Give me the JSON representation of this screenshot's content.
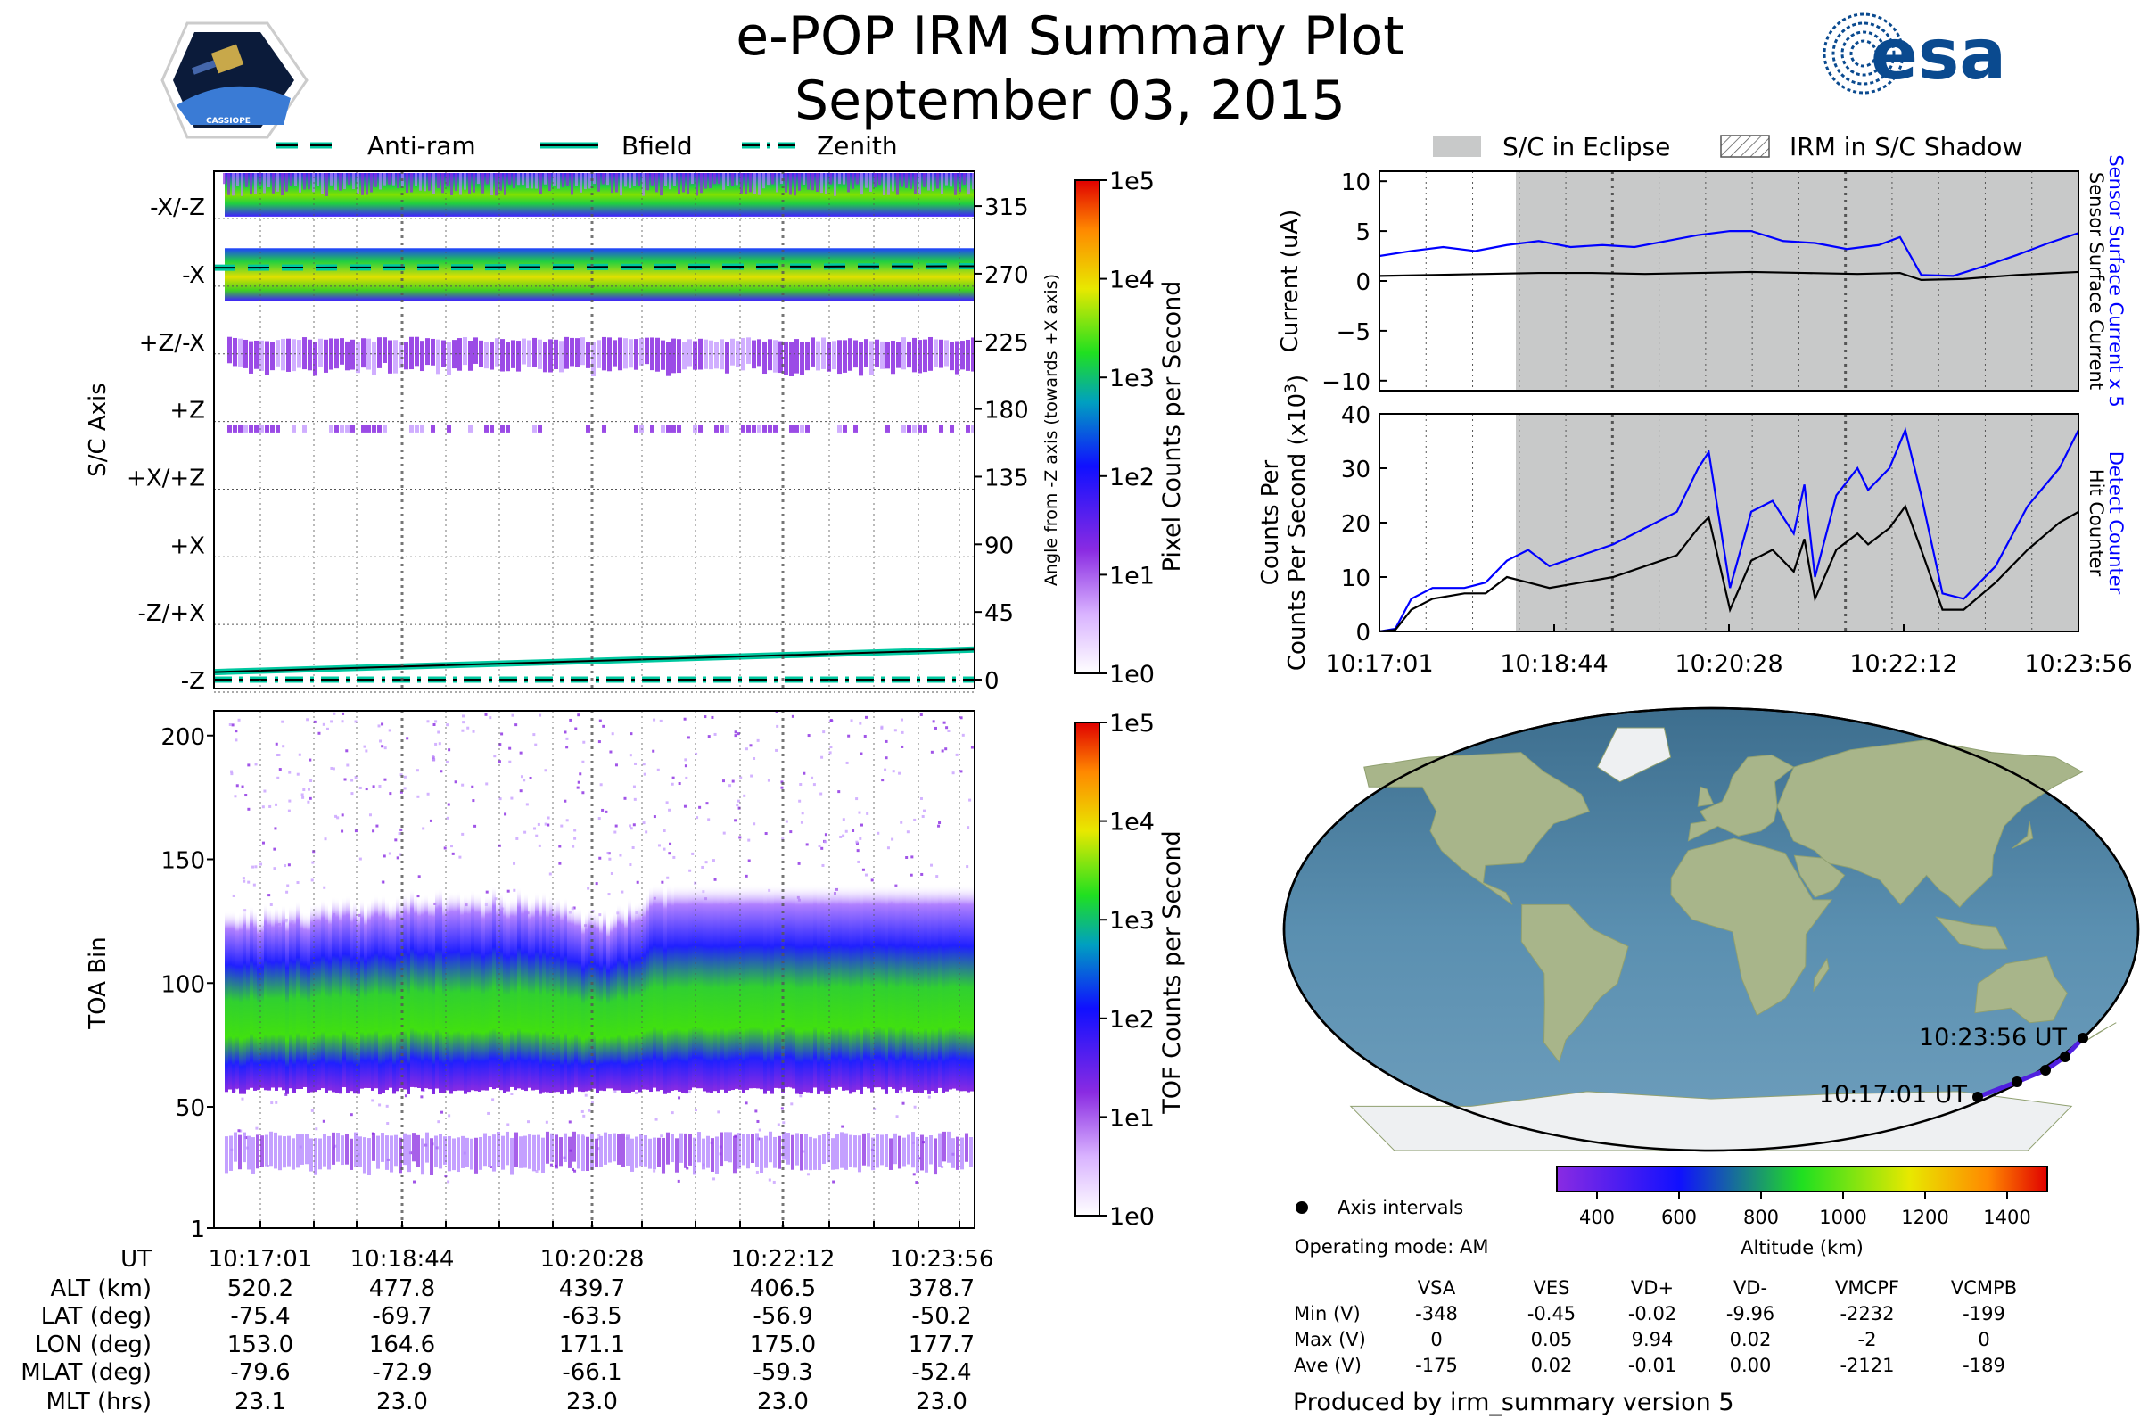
{
  "header": {
    "title": "e-POP IRM Summary Plot",
    "date": "September 03, 2015",
    "left_logo_text": "CASSIOPE",
    "right_logo_text": "esa"
  },
  "colors": {
    "eclipse": "#c8c9c9",
    "blue_trace": "#0000ff",
    "black_trace": "#000000",
    "teal": "#00c8a0"
  },
  "chart_data": [
    {
      "id": "angle_spectrogram",
      "type": "heatmap",
      "ylabel": "S/C Axis",
      "ylabel_right": "Angle from -Z axis (towards +X axis)",
      "y_axis_labels": [
        "-X/-Z",
        "-X",
        "+Z/-X",
        "+Z",
        "+X/+Z",
        "+X",
        "-Z/+X",
        "-Z"
      ],
      "y_right_ticks": [
        "315",
        "270",
        "225",
        "180",
        "135",
        "90",
        "45",
        "0"
      ],
      "y_range": [
        0,
        337
      ],
      "x_ticks": [
        "10:17:01",
        "10:18:44",
        "10:20:28",
        "10:22:12",
        "10:23:56"
      ],
      "legend": [
        "Anti-ram",
        "Bfield",
        "Zenith"
      ],
      "bands_deg": [
        {
          "from": 308,
          "to": 337,
          "level": "high"
        },
        {
          "from": 252,
          "to": 287,
          "level": "very-high"
        },
        {
          "from": 205,
          "to": 228,
          "level": "low"
        },
        {
          "from": 162,
          "to": 178,
          "level": "sparse"
        }
      ],
      "antiram_deg": [
        274,
        275
      ],
      "bfield_deg": [
        5,
        20
      ],
      "zenith_deg": [
        0,
        0
      ],
      "colorbar": {
        "label": "Pixel Counts per Second",
        "ticks": [
          "1e0",
          "1e1",
          "1e2",
          "1e3",
          "1e4",
          "1e5"
        ]
      }
    },
    {
      "id": "tof_spectrogram",
      "type": "heatmap",
      "ylabel": "TOA Bin",
      "y_ticks": [
        "1",
        "50",
        "100",
        "150",
        "200"
      ],
      "y_range": [
        1,
        210
      ],
      "x_ticks": [
        "10:17:01",
        "10:18:44",
        "10:20:28",
        "10:22:12",
        "10:23:56"
      ],
      "main_band_center": [
        75,
        76,
        77,
        78,
        78,
        76,
        65,
        78,
        80,
        80,
        78,
        82,
        80
      ],
      "lower_band_range": [
        25,
        40
      ],
      "colorbar": {
        "label": "TOF Counts per Second",
        "ticks": [
          "1e0",
          "1e1",
          "1e2",
          "1e3",
          "1e4",
          "1e5"
        ]
      }
    },
    {
      "id": "current_plot",
      "type": "line",
      "ylabel": "Current (uA)",
      "yticks": [
        "10",
        "5",
        "0",
        "−5",
        "−10"
      ],
      "ylim": [
        -11,
        11
      ],
      "right_labels": [
        "Sensor Surface Current x 5",
        "Sensor Surface Current"
      ],
      "eclipse_start_min": 1.5,
      "series": [
        {
          "name": "Sensor Surface Current x 5",
          "color": "blue",
          "x": [
            0,
            0.3,
            0.6,
            0.9,
            1.2,
            1.5,
            1.8,
            2.1,
            2.4,
            2.7,
            3.0,
            3.3,
            3.5,
            3.8,
            4.1,
            4.4,
            4.7,
            4.9,
            5.1,
            5.4,
            5.7,
            6.0,
            6.3,
            6.58
          ],
          "y": [
            2.5,
            3.0,
            3.4,
            3.0,
            3.6,
            4.0,
            3.4,
            3.6,
            3.4,
            4.0,
            4.6,
            5.0,
            5.0,
            4.0,
            3.8,
            3.2,
            3.6,
            4.4,
            0.6,
            0.5,
            1.5,
            2.6,
            3.8,
            4.8
          ]
        },
        {
          "name": "Sensor Surface Current",
          "color": "black",
          "x": [
            0,
            0.5,
            1.0,
            1.5,
            2.0,
            2.5,
            3.0,
            3.5,
            4.0,
            4.5,
            4.9,
            5.1,
            5.5,
            6.0,
            6.58
          ],
          "y": [
            0.5,
            0.6,
            0.7,
            0.8,
            0.8,
            0.7,
            0.8,
            0.9,
            0.8,
            0.7,
            0.8,
            0.1,
            0.2,
            0.6,
            0.9
          ]
        }
      ]
    },
    {
      "id": "counts_plot",
      "type": "line",
      "ylabel": "Counts Per Second (x10",
      "ylabel_sup": "3",
      "ylabel_close": ")",
      "yticks": [
        "40",
        "30",
        "20",
        "10",
        "0"
      ],
      "ylim": [
        0,
        40
      ],
      "x_ticks": [
        "10:17:01",
        "10:18:44",
        "10:20:28",
        "10:22:12",
        "10:23:56"
      ],
      "right_labels": [
        "Detect Counter",
        "Hit Counter"
      ],
      "series": [
        {
          "name": "Detect Counter",
          "color": "blue",
          "x": [
            0,
            0.15,
            0.3,
            0.5,
            0.8,
            1.0,
            1.2,
            1.4,
            1.6,
            1.9,
            2.2,
            2.5,
            2.8,
            3.0,
            3.1,
            3.3,
            3.5,
            3.7,
            3.9,
            4.0,
            4.1,
            4.3,
            4.5,
            4.6,
            4.8,
            4.95,
            5.1,
            5.3,
            5.5,
            5.8,
            6.1,
            6.4,
            6.58
          ],
          "y": [
            0,
            0.5,
            6,
            8,
            8,
            9,
            13,
            15,
            12,
            14,
            16,
            19,
            22,
            30,
            33,
            8,
            22,
            24,
            18,
            27,
            10,
            25,
            30,
            26,
            30,
            37,
            25,
            7,
            6,
            12,
            23,
            30,
            37
          ]
        },
        {
          "name": "Hit Counter",
          "color": "black",
          "x": [
            0,
            0.15,
            0.3,
            0.5,
            0.8,
            1.0,
            1.2,
            1.4,
            1.6,
            1.9,
            2.2,
            2.5,
            2.8,
            3.0,
            3.1,
            3.3,
            3.5,
            3.7,
            3.9,
            4.0,
            4.1,
            4.3,
            4.5,
            4.6,
            4.8,
            4.95,
            5.1,
            5.3,
            5.5,
            5.8,
            6.1,
            6.4,
            6.58
          ],
          "y": [
            0,
            0.3,
            4,
            6,
            7,
            7,
            10,
            9,
            8,
            9,
            10,
            12,
            14,
            19,
            21,
            4,
            13,
            15,
            11,
            17,
            6,
            15,
            18,
            16,
            19,
            23,
            15,
            4,
            4,
            9,
            15,
            20,
            22
          ]
        }
      ]
    }
  ],
  "legend_top_left": [
    "Anti-ram",
    "Bfield",
    "Zenith"
  ],
  "legend_top_right": [
    "S/C in Eclipse",
    "IRM in S/C Shadow"
  ],
  "map": {
    "label_end": "10:23:56 UT",
    "label_start": "10:17:01 UT",
    "colorbar_ticks": [
      "400",
      "600",
      "800",
      "1000",
      "1200",
      "1400"
    ],
    "colorbar_label": "Altitude (km)",
    "axis_intervals_label": "Axis intervals",
    "operating_mode": "Operating mode: AM"
  },
  "ephemeris": {
    "row_labels": [
      "UT",
      "ALT (km)",
      "LAT (deg)",
      "LON (deg)",
      "MLAT (deg)",
      "MLT (hrs)"
    ],
    "columns": [
      [
        "10:17:01",
        "520.2",
        "-75.4",
        "153.0",
        "-79.6",
        "23.1"
      ],
      [
        "10:18:44",
        "477.8",
        "-69.7",
        "164.6",
        "-72.9",
        "23.0"
      ],
      [
        "10:20:28",
        "439.7",
        "-63.5",
        "171.1",
        "-66.1",
        "23.0"
      ],
      [
        "10:22:12",
        "406.5",
        "-56.9",
        "175.0",
        "-59.3",
        "23.0"
      ],
      [
        "10:23:56",
        "378.7",
        "-50.2",
        "177.7",
        "-52.4",
        "23.0"
      ]
    ]
  },
  "voltage_table": {
    "headers": [
      "VSA",
      "VES",
      "VD+",
      "VD-",
      "VMCPF",
      "VCMPB"
    ],
    "rows": [
      {
        "label": "Min (V)",
        "values": [
          "-348",
          "-0.45",
          "-0.02",
          "-9.96",
          "-2232",
          "-199"
        ]
      },
      {
        "label": "Max (V)",
        "values": [
          "0",
          "0.05",
          "9.94",
          "0.02",
          "-2",
          "0"
        ]
      },
      {
        "label": "Ave (V)",
        "values": [
          "-175",
          "0.02",
          "-0.01",
          "0.00",
          "-2121",
          "-189"
        ]
      }
    ]
  },
  "footer": "Produced by irm_summary version 5"
}
